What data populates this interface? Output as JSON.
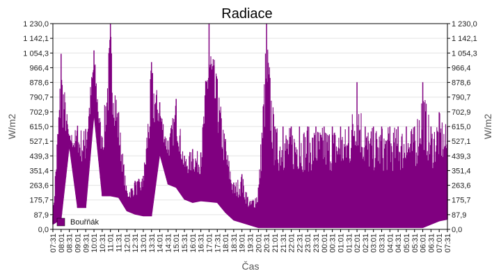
{
  "chart_data": {
    "type": "area",
    "title": "Radiace",
    "xlabel": "Čas",
    "ylabel": "W/m2",
    "ylabel_right": "W/m2",
    "y_ticks": [
      "0,0",
      "87,9",
      "175,7",
      "263,6",
      "351,4",
      "439,3",
      "527,1",
      "615,0",
      "702,9",
      "790,7",
      "878,6",
      "966,4",
      "1 054,3",
      "1 142,1",
      "1 230,0"
    ],
    "ylim": [
      0,
      1230
    ],
    "x_ticks": [
      "07:31",
      "08:01",
      "08:31",
      "09:01",
      "09:31",
      "10:01",
      "10:31",
      "11:01",
      "11:31",
      "12:01",
      "12:31",
      "13:01",
      "13:31",
      "14:01",
      "14:31",
      "15:01",
      "15:31",
      "16:01",
      "16:31",
      "17:01",
      "17:31",
      "18:01",
      "18:31",
      "19:01",
      "19:31",
      "20:01",
      "20:31",
      "21:01",
      "21:31",
      "22:01",
      "22:31",
      "23:01",
      "23:31",
      "00:01",
      "00:31",
      "01:01",
      "01:31",
      "02:01",
      "02:31",
      "03:01",
      "03:31",
      "04:01",
      "04:31",
      "05:01",
      "05:31",
      "06:01",
      "06:31",
      "07:01",
      "07:31"
    ],
    "grid": true,
    "legend_position": "bottom-left",
    "series": [
      {
        "name": "Bouřňák",
        "color": "#800080",
        "x": [
          "07:31",
          "08:01",
          "08:31",
          "09:01",
          "09:31",
          "10:01",
          "10:31",
          "11:01",
          "11:31",
          "12:01",
          "12:31",
          "13:01",
          "13:31",
          "14:01",
          "14:31",
          "15:01",
          "15:31",
          "16:01",
          "16:31",
          "17:01",
          "17:31",
          "18:01",
          "18:31",
          "19:01",
          "19:31",
          "20:01",
          "20:31",
          "21:01",
          "21:31",
          "22:01",
          "22:31",
          "23:01",
          "23:31",
          "00:01",
          "00:31",
          "01:01",
          "01:31",
          "02:01",
          "02:31",
          "03:01",
          "03:31",
          "04:01",
          "04:31",
          "05:01",
          "05:31",
          "06:01",
          "06:31",
          "07:01",
          "07:31"
        ],
        "upper": [
          80,
          1050,
          560,
          620,
          600,
          1070,
          550,
          1230,
          700,
          230,
          290,
          320,
          1000,
          760,
          530,
          780,
          440,
          480,
          460,
          1230,
          900,
          540,
          280,
          330,
          170,
          250,
          1230,
          615,
          615,
          615,
          615,
          615,
          615,
          615,
          615,
          615,
          615,
          880,
          615,
          615,
          615,
          615,
          615,
          615,
          615,
          880,
          615,
          700,
          615
        ],
        "lower": [
          30,
          60,
          500,
          130,
          130,
          690,
          200,
          200,
          190,
          110,
          90,
          80,
          80,
          450,
          270,
          250,
          180,
          160,
          170,
          165,
          160,
          100,
          55,
          40,
          25,
          10,
          10,
          10,
          10,
          10,
          10,
          10,
          10,
          10,
          10,
          10,
          10,
          10,
          10,
          10,
          10,
          10,
          10,
          10,
          10,
          10,
          30,
          50,
          60
        ]
      }
    ]
  }
}
